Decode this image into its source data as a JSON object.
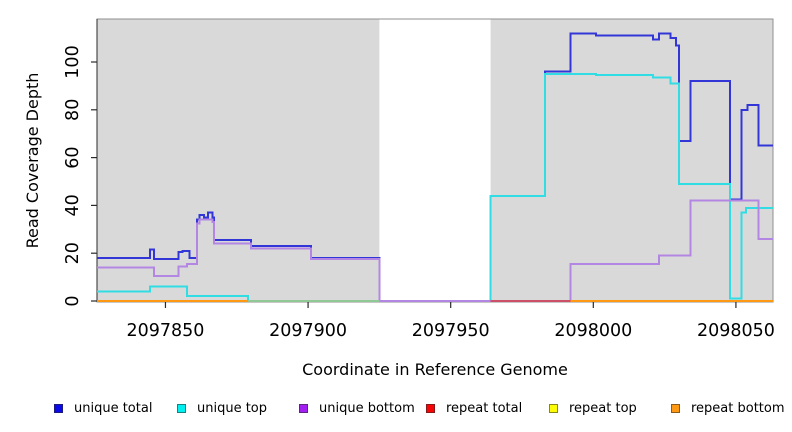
{
  "figure": {
    "x_axis_title": "Coordinate in Reference Genome",
    "y_axis_title": "Read Coverage Depth"
  },
  "legend": {
    "items": [
      {
        "label": "unique total",
        "color": "#0a0ae8"
      },
      {
        "label": "unique top",
        "color": "#00f0f0"
      },
      {
        "label": "unique bottom",
        "color": "#a21ff0"
      },
      {
        "label": "repeat total",
        "color": "#f50505"
      },
      {
        "label": "repeat top",
        "color": "#fdfd05"
      },
      {
        "label": "repeat bottom",
        "color": "#ff9914"
      }
    ]
  },
  "chart_data": {
    "type": "line",
    "step": true,
    "title": "",
    "xlabel": "Coordinate in Reference Genome",
    "ylabel": "Read Coverage Depth",
    "xlim": [
      2097826,
      2098063
    ],
    "ylim": [
      0,
      118
    ],
    "x_ticks": [
      2097850,
      2097900,
      2097950,
      2098000,
      2098050
    ],
    "y_ticks": [
      0,
      20,
      40,
      60,
      80,
      100
    ],
    "grid": false,
    "plot_background": "#d9d9d9",
    "gap_band": {
      "from": 2097925,
      "to": 2097964,
      "color": "#ffffff"
    },
    "series": [
      {
        "name": "unique total",
        "color": "#3336d6",
        "points": [
          [
            2097826,
            18
          ],
          [
            2097844.5,
            21.5
          ],
          [
            2097846,
            17.5
          ],
          [
            2097854.5,
            20.5
          ],
          [
            2097856,
            21
          ],
          [
            2097858.5,
            18
          ],
          [
            2097861,
            34
          ],
          [
            2097862,
            36
          ],
          [
            2097863.5,
            35
          ],
          [
            2097865,
            37
          ],
          [
            2097866.5,
            35
          ],
          [
            2097867,
            25.5
          ],
          [
            2097880,
            23
          ],
          [
            2097901,
            18
          ],
          [
            2097925,
            0
          ],
          [
            2097964,
            44
          ],
          [
            2097983,
            96
          ],
          [
            2097992,
            112
          ],
          [
            2098001,
            111
          ],
          [
            2098021,
            109.5
          ],
          [
            2098023,
            112
          ],
          [
            2098027,
            110
          ],
          [
            2098029,
            107
          ],
          [
            2098030,
            67
          ],
          [
            2098034,
            92
          ],
          [
            2098048,
            42.5
          ],
          [
            2098052,
            80
          ],
          [
            2098054,
            82
          ],
          [
            2098058,
            65
          ]
        ]
      },
      {
        "name": "unique top",
        "color": "#31dde4",
        "points": [
          [
            2097826,
            4
          ],
          [
            2097844.5,
            6
          ],
          [
            2097857.5,
            2
          ],
          [
            2097879,
            0
          ],
          [
            2097964,
            44
          ],
          [
            2097983,
            95
          ],
          [
            2098001,
            94.5
          ],
          [
            2098021,
            93.5
          ],
          [
            2098027,
            91
          ],
          [
            2098030,
            49
          ],
          [
            2098048,
            1
          ],
          [
            2098052,
            37
          ],
          [
            2098053.5,
            39
          ]
        ]
      },
      {
        "name": "unique bottom",
        "color": "#b286e2",
        "points": [
          [
            2097826,
            14
          ],
          [
            2097846,
            10.5
          ],
          [
            2097854.5,
            14.5
          ],
          [
            2097857.5,
            15.5
          ],
          [
            2097861,
            32.5
          ],
          [
            2097862,
            34
          ],
          [
            2097866.5,
            33
          ],
          [
            2097867,
            24
          ],
          [
            2097880,
            22
          ],
          [
            2097901,
            17.5
          ],
          [
            2097925,
            0
          ],
          [
            2097992,
            15.5
          ],
          [
            2098023,
            19
          ],
          [
            2098034,
            42
          ],
          [
            2098058,
            26
          ]
        ]
      },
      {
        "name": "repeat total",
        "color": "#f50505",
        "points": [
          [
            2097826,
            0
          ]
        ]
      },
      {
        "name": "repeat top",
        "color": "#fdfd05",
        "points": [
          [
            2097826,
            0
          ]
        ]
      },
      {
        "name": "repeat bottom",
        "color": "#ff9914",
        "points": [
          [
            2097826,
            0
          ]
        ]
      }
    ],
    "baseline_segments": [
      {
        "from": 2097826,
        "to": 2097879,
        "color": "#ff9914"
      },
      {
        "from": 2097879,
        "to": 2097925,
        "color": "#90c995"
      },
      {
        "from": 2097925,
        "to": 2097964,
        "color": "#b286e2"
      },
      {
        "from": 2097964,
        "to": 2097992,
        "color": "#cb5068"
      },
      {
        "from": 2097992,
        "to": 2098063,
        "color": "#ff9914"
      }
    ]
  }
}
